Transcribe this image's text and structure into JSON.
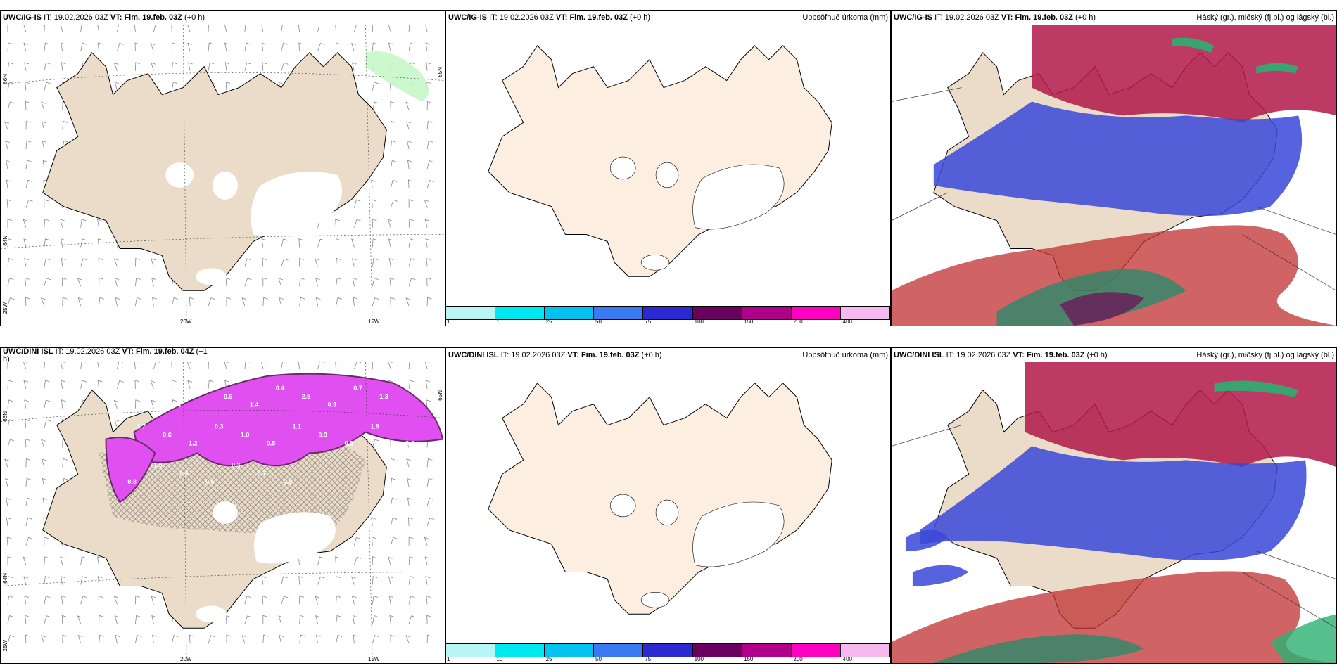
{
  "panels": [
    {
      "id": "p1",
      "model": "UWC/IG-IS",
      "it_label": "IT:",
      "it_value": "19.02.2026 03Z",
      "vt_label": "VT:",
      "vt_value": "Fim. 19.feb. 03Z",
      "lead": "(+0 h)",
      "right_title": "",
      "axis": {
        "lat_top": "66N",
        "lat_mid": "64N",
        "lat_bot": "25W",
        "lon_a": "20W",
        "lon_b": "15W",
        "lat_right": "65N"
      }
    },
    {
      "id": "p2",
      "model": "UWC/IG-IS",
      "it_label": "IT:",
      "it_value": "19.02.2026 03Z",
      "vt_label": "VT:",
      "vt_value": "Fim. 19.feb. 03Z",
      "lead": "(+0 h)",
      "right_title": "Uppsöfnuð úrkoma (mm)"
    },
    {
      "id": "p3",
      "model": "UWC/IG-IS",
      "it_label": "IT:",
      "it_value": "19.02.2026 03Z",
      "vt_label": "VT:",
      "vt_value": "Fim. 19.feb. 03Z",
      "lead": "(+0 h)",
      "right_title": "Háský (gr.), miðský (fj.bl.) og lágský (bl.)"
    },
    {
      "id": "p4",
      "model": "UWC/DINI ISL",
      "it_label": "IT:",
      "it_value": "19.02.2026 03Z",
      "vt_label": "VT:",
      "vt_value": "Fim. 19.feb. 04Z",
      "lead": "(+1",
      "lead_wrap": "h)",
      "right_title": "",
      "axis": {
        "lat_top": "66N",
        "lat_mid": "64N",
        "lat_bot": "25W",
        "lon_a": "20W",
        "lon_b": "15W",
        "lat_right": "65N"
      },
      "values": [
        "0.9",
        "0.5",
        "0.4",
        "0.6",
        "0.9",
        "1.4",
        "0.4",
        "2.5",
        "0.3",
        "0.7",
        "1.3",
        "2.4",
        "1.7",
        "0.6",
        "1.2",
        "0.3",
        "1.0",
        "0.5",
        "1.1",
        "0.9",
        "0.3",
        "1.8",
        "0.5",
        "0.8",
        "1.5",
        "0.4",
        "0.6",
        "0.3",
        "0.7",
        "0.9"
      ]
    },
    {
      "id": "p5",
      "model": "UWC/DINI ISL",
      "it_label": "IT:",
      "it_value": "19.02.2026 03Z",
      "vt_label": "VT:",
      "vt_value": "Fim. 19.feb. 03Z",
      "lead": "(+0 h)",
      "right_title": "Uppsöfnuð úrkoma (mm)"
    },
    {
      "id": "p6",
      "model": "UWC/DINI ISL",
      "it_label": "IT:",
      "it_value": "19.02.2026 03Z",
      "vt_label": "VT:",
      "vt_value": "Fim. 19.feb. 03Z",
      "lead": "(+0 h)",
      "right_title": "Háský (gr.), miðský (fj.bl.) og lágský (bl.)"
    }
  ],
  "colorbar": {
    "labels": [
      "1",
      "10",
      "25",
      "50",
      "75",
      "100",
      "150",
      "200",
      "400"
    ],
    "colors": [
      "#b8f5f5",
      "#00e8f0",
      "#00c3f0",
      "#3a7af0",
      "#2a2ad0",
      "#6a0060",
      "#b0008a",
      "#ff00c0",
      "#f7b8f0"
    ]
  },
  "colors": {
    "land_wind": "#eadcc8",
    "land_precip": "#fcefe2",
    "ice": "#ffffff",
    "high_cloud": "#2ab070",
    "mid_cloud": "#b01848",
    "low_cloud": "#3a48d8",
    "precip_purple": "#e050f0",
    "precip_dark": "#6a2a6a"
  }
}
